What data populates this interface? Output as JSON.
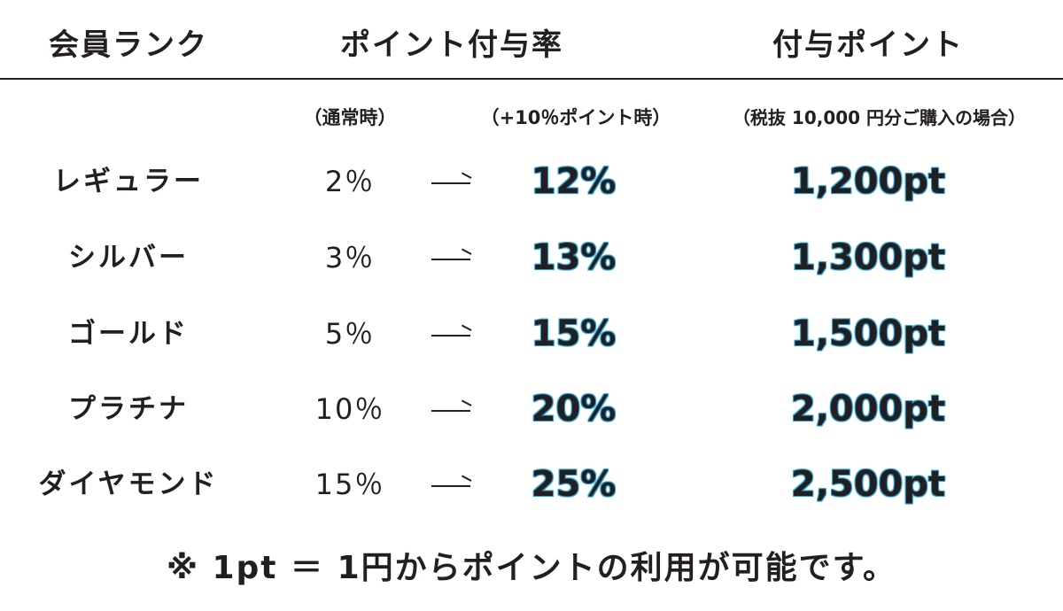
{
  "headers": {
    "rank": "会員ランク",
    "rate": "ポイント付与率",
    "points": "付与ポイント"
  },
  "subheaders": {
    "normal": "（通常時）",
    "plus": "（+10％ポイント時）",
    "note": "（税抜 10,000 円分ご購入の場合）"
  },
  "accent_color": "#29a3d8",
  "arrow": "—",
  "rows": [
    {
      "rank": "レギュラー",
      "normal": "2％",
      "boost": "12%",
      "points": "1,200pt"
    },
    {
      "rank": "シルバー",
      "normal": "3％",
      "boost": "13%",
      "points": "1,300pt"
    },
    {
      "rank": "ゴールド",
      "normal": "5％",
      "boost": "15%",
      "points": "1,500pt"
    },
    {
      "rank": "プラチナ",
      "normal": "10％",
      "boost": "20%",
      "points": "2,000pt"
    },
    {
      "rank": "ダイヤモンド",
      "normal": "15％",
      "boost": "25%",
      "points": "2,500pt"
    }
  ],
  "footer": "※ 1pt ＝ 1円からポイントの利用が可能です。"
}
